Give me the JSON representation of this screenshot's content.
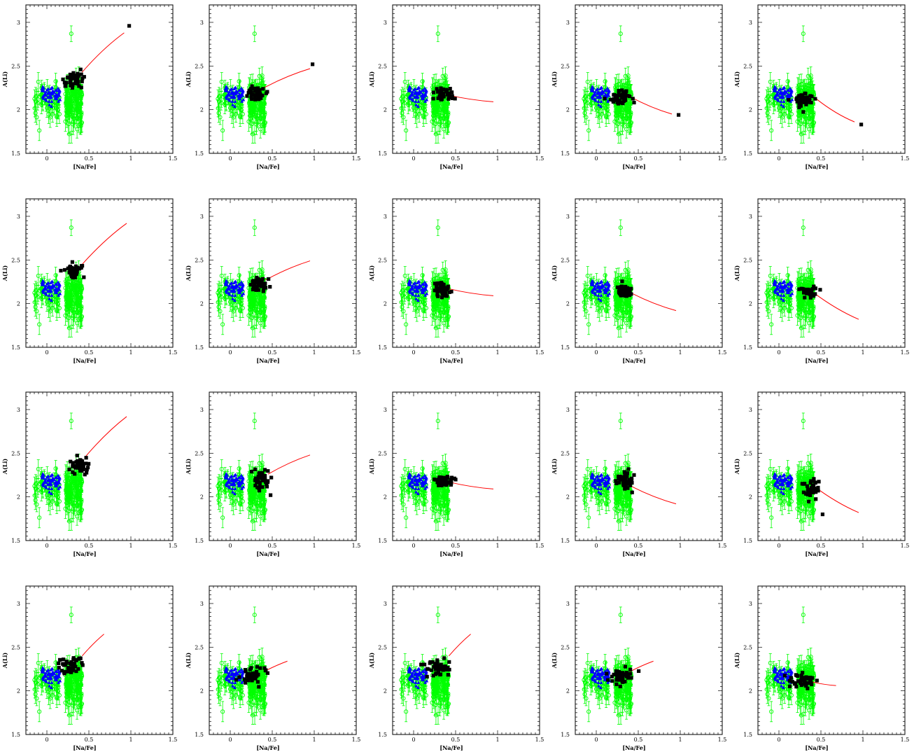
{
  "figure": {
    "rows": 4,
    "cols": 5,
    "xlabel": "[Na/Fe]",
    "ylabel": "A(Li)",
    "xlim": [
      -0.25,
      1.5
    ],
    "ylim": [
      1.5,
      3.2
    ],
    "xticks": [
      0,
      0.5,
      1,
      1.5
    ],
    "xtick_labels": [
      "0",
      "0.5",
      "1",
      "1.5"
    ],
    "yticks": [
      1.5,
      2,
      2.5,
      3
    ],
    "ytick_labels": [
      "1.5",
      "2",
      "2.5",
      "3"
    ],
    "colors": {
      "green": "#00ff00",
      "blue": "#0000ff",
      "black": "#000000",
      "red": "#ff0000"
    }
  },
  "chart_data": [
    {
      "type": "scatter",
      "cluster": [
        0.32,
        2.33
      ],
      "spread": [
        0.1,
        0.08
      ],
      "end": [
        0.98,
        2.96
      ],
      "curve_start": [
        0.42,
        2.43
      ],
      "curve_end": [
        0.92,
        2.88
      ],
      "bend": 0.05,
      "outliers": [
        [
          0.98,
          2.96
        ]
      ]
    },
    {
      "type": "scatter",
      "cluster": [
        0.3,
        2.18
      ],
      "spread": [
        0.1,
        0.07
      ],
      "end": [
        0.98,
        2.52
      ],
      "curve_start": [
        0.4,
        2.25
      ],
      "curve_end": [
        0.95,
        2.47
      ],
      "bend": 0.03,
      "outliers": [
        [
          0.98,
          2.52
        ]
      ]
    },
    {
      "type": "scatter",
      "cluster": [
        0.35,
        2.18
      ],
      "spread": [
        0.1,
        0.06
      ],
      "end": [
        0.95,
        2.09
      ],
      "curve_start": [
        0.4,
        2.17
      ],
      "curve_end": [
        0.95,
        2.09
      ],
      "bend": -0.02,
      "outliers": []
    },
    {
      "type": "scatter",
      "cluster": [
        0.3,
        2.12
      ],
      "spread": [
        0.1,
        0.07
      ],
      "end": [
        0.98,
        1.94
      ],
      "curve_start": [
        0.4,
        2.15
      ],
      "curve_end": [
        0.9,
        1.95
      ],
      "bend": -0.03,
      "outliers": [
        [
          0.98,
          1.94
        ]
      ]
    },
    {
      "type": "scatter",
      "cluster": [
        0.3,
        2.12
      ],
      "spread": [
        0.1,
        0.07
      ],
      "end": [
        0.98,
        1.83
      ],
      "curve_start": [
        0.45,
        2.12
      ],
      "curve_end": [
        0.9,
        1.86
      ],
      "bend": -0.04,
      "outliers": [
        [
          0.98,
          1.83
        ]
      ]
    },
    {
      "type": "scatter",
      "cluster": [
        0.32,
        2.37
      ],
      "spread": [
        0.08,
        0.07
      ],
      "end": [
        0.95,
        2.92
      ],
      "curve_start": [
        0.42,
        2.45
      ],
      "curve_end": [
        0.95,
        2.92
      ],
      "bend": 0.05,
      "outliers": []
    },
    {
      "type": "scatter",
      "cluster": [
        0.35,
        2.22
      ],
      "spread": [
        0.08,
        0.07
      ],
      "end": [
        0.95,
        2.49
      ],
      "curve_start": [
        0.42,
        2.27
      ],
      "curve_end": [
        0.95,
        2.49
      ],
      "bend": 0.03,
      "outliers": []
    },
    {
      "type": "scatter",
      "cluster": [
        0.35,
        2.16
      ],
      "spread": [
        0.08,
        0.06
      ],
      "end": [
        0.95,
        2.09
      ],
      "curve_start": [
        0.42,
        2.17
      ],
      "curve_end": [
        0.95,
        2.09
      ],
      "bend": -0.02,
      "outliers": []
    },
    {
      "type": "scatter",
      "cluster": [
        0.35,
        2.14
      ],
      "spread": [
        0.08,
        0.06
      ],
      "end": [
        0.95,
        1.92
      ],
      "curve_start": [
        0.42,
        2.12
      ],
      "curve_end": [
        0.95,
        1.92
      ],
      "bend": -0.03,
      "outliers": []
    },
    {
      "type": "scatter",
      "cluster": [
        0.35,
        2.13
      ],
      "spread": [
        0.08,
        0.06
      ],
      "end": [
        0.95,
        1.82
      ],
      "curve_start": [
        0.42,
        2.12
      ],
      "curve_end": [
        0.95,
        1.82
      ],
      "bend": -0.04,
      "outliers": []
    },
    {
      "type": "scatter",
      "cluster": [
        0.38,
        2.35
      ],
      "spread": [
        0.1,
        0.07
      ],
      "end": [
        0.95,
        2.92
      ],
      "curve_start": [
        0.45,
        2.45
      ],
      "curve_end": [
        0.95,
        2.92
      ],
      "bend": 0.05,
      "outliers": []
    },
    {
      "type": "scatter",
      "cluster": [
        0.37,
        2.2
      ],
      "spread": [
        0.1,
        0.08
      ],
      "end": [
        0.95,
        2.48
      ],
      "curve_start": [
        0.45,
        2.26
      ],
      "curve_end": [
        0.95,
        2.48
      ],
      "bend": 0.03,
      "outliers": [
        [
          0.48,
          2.02
        ]
      ]
    },
    {
      "type": "scatter",
      "cluster": [
        0.35,
        2.18
      ],
      "spread": [
        0.1,
        0.06
      ],
      "end": [
        0.95,
        2.09
      ],
      "curve_start": [
        0.42,
        2.17
      ],
      "curve_end": [
        0.95,
        2.09
      ],
      "bend": -0.02,
      "outliers": []
    },
    {
      "type": "scatter",
      "cluster": [
        0.35,
        2.18
      ],
      "spread": [
        0.1,
        0.08
      ],
      "end": [
        0.95,
        1.92
      ],
      "curve_start": [
        0.42,
        2.12
      ],
      "curve_end": [
        0.95,
        1.92
      ],
      "bend": -0.03,
      "outliers": []
    },
    {
      "type": "scatter",
      "cluster": [
        0.38,
        2.1
      ],
      "spread": [
        0.1,
        0.09
      ],
      "end": [
        0.95,
        1.82
      ],
      "curve_start": [
        0.42,
        2.12
      ],
      "curve_end": [
        0.95,
        1.82
      ],
      "bend": -0.04,
      "outliers": [
        [
          0.52,
          1.8
        ]
      ]
    },
    {
      "type": "scatter",
      "cluster": [
        0.28,
        2.28
      ],
      "spread": [
        0.12,
        0.09
      ],
      "end": [
        0.68,
        2.65
      ],
      "curve_start": [
        0.42,
        2.4
      ],
      "curve_end": [
        0.68,
        2.65
      ],
      "bend": 0.02,
      "outliers": []
    },
    {
      "type": "scatter",
      "cluster": [
        0.28,
        2.18
      ],
      "spread": [
        0.12,
        0.08
      ],
      "end": [
        0.68,
        2.34
      ],
      "curve_start": [
        0.4,
        2.22
      ],
      "curve_end": [
        0.68,
        2.34
      ],
      "bend": 0.01,
      "outliers": []
    },
    {
      "type": "scatter",
      "cluster": [
        0.28,
        2.28
      ],
      "spread": [
        0.12,
        0.09
      ],
      "end": [
        0.68,
        2.65
      ],
      "curve_start": [
        0.42,
        2.4
      ],
      "curve_end": [
        0.68,
        2.65
      ],
      "bend": 0.02,
      "outliers": []
    },
    {
      "type": "scatter",
      "cluster": [
        0.28,
        2.18
      ],
      "spread": [
        0.12,
        0.08
      ],
      "end": [
        0.68,
        2.34
      ],
      "curve_start": [
        0.4,
        2.22
      ],
      "curve_end": [
        0.68,
        2.34
      ],
      "bend": 0.01,
      "outliers": []
    },
    {
      "type": "scatter",
      "cluster": [
        0.28,
        2.12
      ],
      "spread": [
        0.12,
        0.07
      ],
      "end": [
        0.68,
        2.06
      ],
      "curve_start": [
        0.4,
        2.1
      ],
      "curve_end": [
        0.68,
        2.06
      ],
      "bend": -0.01,
      "outliers": []
    }
  ]
}
